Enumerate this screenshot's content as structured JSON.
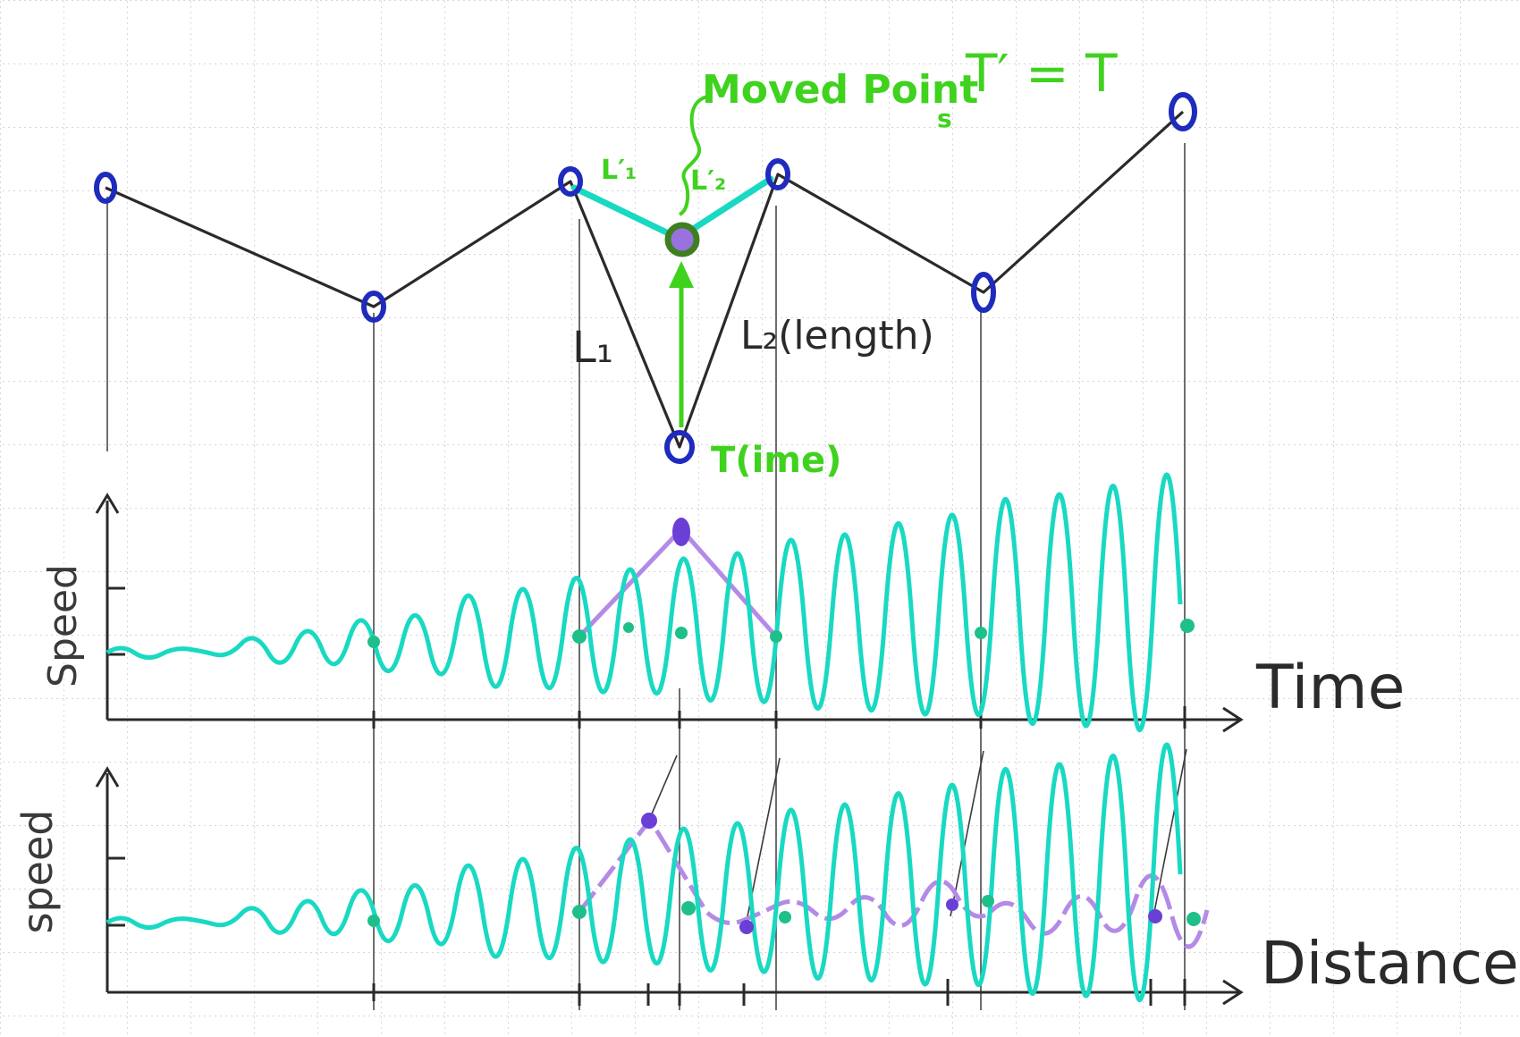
{
  "colors": {
    "paper": "#ffffff",
    "grid": "#b9b9b9",
    "ink": "#2a2a2a",
    "point_blue": "#1f2bbd",
    "green": "#3fd21e",
    "cyan": "#19d9c2",
    "purple": "#b48ae6",
    "purple_dot": "#6a3fd6",
    "moved_fill": "#9a72e0",
    "moved_ring": "#3f7f22"
  },
  "labels": {
    "moved_point": "Moved Point",
    "moved_point_sub": "s",
    "time_equal": "T′ = T",
    "l1_prime": "L′₁",
    "l2_prime": "L′₂",
    "l1": "L₁",
    "l2": "L₂(length)",
    "t_time": "T(ime)",
    "speed_top": "Speed",
    "speed_bottom": "speed",
    "axis_time": "Time",
    "axis_distance": "Distance"
  },
  "icons": {
    "control_point": "circle-outline-icon",
    "moved_point": "filled-circle-icon",
    "move_arrow": "arrow-up-icon",
    "axis_arrow": "arrowhead-icon"
  }
}
